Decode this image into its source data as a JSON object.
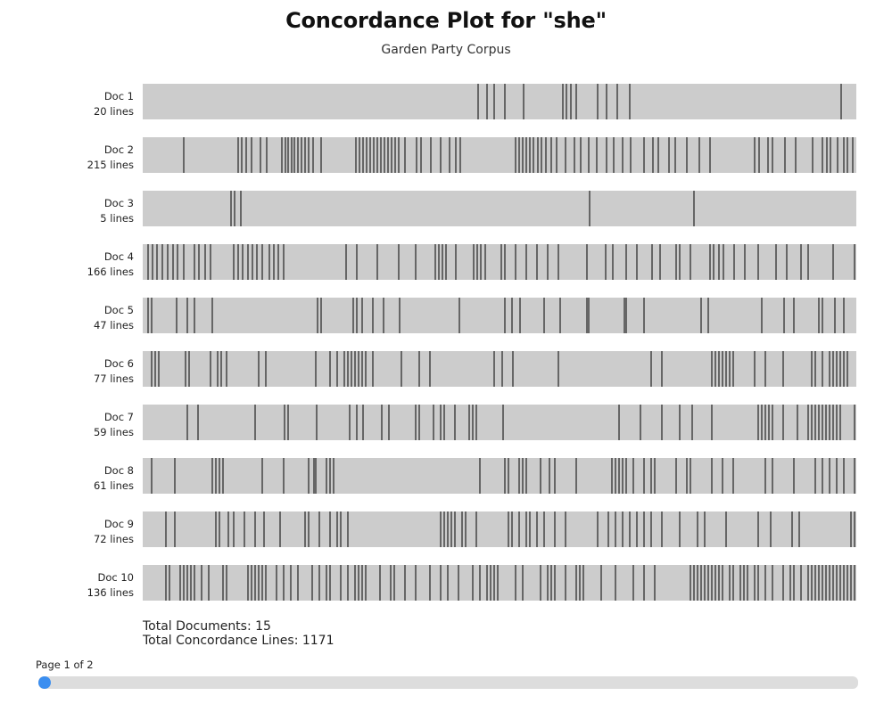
{
  "chart_data": {
    "type": "concordance",
    "title": "Concordance Plot for \"she\"",
    "subtitle": "Garden Party Corpus",
    "hit_color": "#666666",
    "track_color": "#cccccc",
    "documents": [
      {
        "label": "Doc 1",
        "lines_label": "20 lines",
        "lines": 20,
        "hits": [
          0.469,
          0.481,
          0.491,
          0.506,
          0.532,
          0.587,
          0.592,
          0.599,
          0.606,
          0.636,
          0.649,
          0.664,
          0.681,
          0.977
        ]
      },
      {
        "label": "Doc 2",
        "lines_label": "215 lines",
        "lines": 215,
        "hits": [
          0.056,
          0.132,
          0.138,
          0.144,
          0.151,
          0.164,
          0.172,
          0.194,
          0.199,
          0.203,
          0.207,
          0.211,
          0.216,
          0.221,
          0.226,
          0.231,
          0.238,
          0.249,
          0.298,
          0.303,
          0.308,
          0.313,
          0.318,
          0.323,
          0.328,
          0.333,
          0.338,
          0.343,
          0.348,
          0.353,
          0.358,
          0.366,
          0.383,
          0.389,
          0.402,
          0.416,
          0.429,
          0.438,
          0.444,
          0.521,
          0.526,
          0.531,
          0.536,
          0.541,
          0.546,
          0.552,
          0.557,
          0.564,
          0.571,
          0.579,
          0.591,
          0.604,
          0.612,
          0.624,
          0.635,
          0.649,
          0.659,
          0.671,
          0.683,
          0.701,
          0.714,
          0.721,
          0.736,
          0.745,
          0.761,
          0.779,
          0.794,
          0.856,
          0.863,
          0.875,
          0.881,
          0.899,
          0.914,
          0.937,
          0.951,
          0.957,
          0.962,
          0.972,
          0.981,
          0.986,
          0.994
        ]
      },
      {
        "label": "Doc 3",
        "lines_label": "5 lines",
        "lines": 5,
        "hits": [
          0.122,
          0.128,
          0.136,
          0.625,
          0.771
        ]
      },
      {
        "label": "Doc 4",
        "lines_label": "166 lines",
        "lines": 166,
        "hits": [
          0.006,
          0.012,
          0.019,
          0.026,
          0.034,
          0.041,
          0.048,
          0.056,
          0.071,
          0.078,
          0.086,
          0.094,
          0.126,
          0.133,
          0.139,
          0.146,
          0.152,
          0.159,
          0.166,
          0.176,
          0.182,
          0.189,
          0.196,
          0.284,
          0.299,
          0.328,
          0.357,
          0.381,
          0.409,
          0.414,
          0.419,
          0.424,
          0.438,
          0.462,
          0.467,
          0.472,
          0.479,
          0.501,
          0.506,
          0.521,
          0.536,
          0.551,
          0.566,
          0.581,
          0.621,
          0.648,
          0.658,
          0.676,
          0.691,
          0.712,
          0.724,
          0.746,
          0.751,
          0.766,
          0.794,
          0.799,
          0.806,
          0.813,
          0.828,
          0.843,
          0.861,
          0.886,
          0.901,
          0.921,
          0.931,
          0.966,
          0.996
        ]
      },
      {
        "label": "Doc 5",
        "lines_label": "47 lines",
        "lines": 47,
        "hits": [
          0.006,
          0.011,
          0.046,
          0.061,
          0.071,
          0.096,
          0.244,
          0.249,
          0.294,
          0.299,
          0.306,
          0.321,
          0.336,
          0.359,
          0.443,
          0.506,
          0.516,
          0.528,
          0.561,
          0.584,
          0.621,
          0.624,
          0.674,
          0.676,
          0.701,
          0.781,
          0.791,
          0.866,
          0.897,
          0.911,
          0.946,
          0.951,
          0.969,
          0.981
        ]
      },
      {
        "label": "Doc 6",
        "lines_label": "77 lines",
        "lines": 77,
        "hits": [
          0.011,
          0.016,
          0.021,
          0.059,
          0.064,
          0.094,
          0.104,
          0.109,
          0.116,
          0.161,
          0.171,
          0.241,
          0.261,
          0.271,
          0.281,
          0.286,
          0.291,
          0.296,
          0.301,
          0.306,
          0.311,
          0.321,
          0.361,
          0.386,
          0.401,
          0.491,
          0.502,
          0.518,
          0.581,
          0.711,
          0.726,
          0.796,
          0.801,
          0.806,
          0.811,
          0.816,
          0.821,
          0.826,
          0.856,
          0.871,
          0.896,
          0.936,
          0.941,
          0.951,
          0.961,
          0.966,
          0.971,
          0.976,
          0.981,
          0.986
        ]
      },
      {
        "label": "Doc 7",
        "lines_label": "59 lines",
        "lines": 59,
        "hits": [
          0.061,
          0.076,
          0.156,
          0.198,
          0.203,
          0.243,
          0.289,
          0.299,
          0.308,
          0.334,
          0.344,
          0.381,
          0.386,
          0.406,
          0.416,
          0.421,
          0.436,
          0.456,
          0.461,
          0.466,
          0.504,
          0.666,
          0.696,
          0.726,
          0.751,
          0.769,
          0.796,
          0.861,
          0.866,
          0.871,
          0.876,
          0.881,
          0.896,
          0.916,
          0.931,
          0.936,
          0.941,
          0.946,
          0.951,
          0.956,
          0.961,
          0.966,
          0.971,
          0.976,
          0.996
        ]
      },
      {
        "label": "Doc 8",
        "lines_label": "61 lines",
        "lines": 61,
        "hits": [
          0.011,
          0.044,
          0.096,
          0.101,
          0.106,
          0.111,
          0.166,
          0.196,
          0.231,
          0.239,
          0.241,
          0.256,
          0.261,
          0.266,
          0.471,
          0.506,
          0.511,
          0.526,
          0.531,
          0.536,
          0.556,
          0.569,
          0.576,
          0.606,
          0.656,
          0.661,
          0.666,
          0.671,
          0.676,
          0.686,
          0.701,
          0.711,
          0.716,
          0.746,
          0.761,
          0.766,
          0.796,
          0.811,
          0.826,
          0.871,
          0.881,
          0.911,
          0.941,
          0.951,
          0.961,
          0.971,
          0.981,
          0.996
        ]
      },
      {
        "label": "Doc 9",
        "lines_label": "72 lines",
        "lines": 72,
        "hits": [
          0.031,
          0.044,
          0.101,
          0.106,
          0.119,
          0.126,
          0.141,
          0.156,
          0.169,
          0.191,
          0.226,
          0.231,
          0.246,
          0.261,
          0.271,
          0.276,
          0.286,
          0.416,
          0.421,
          0.426,
          0.431,
          0.436,
          0.446,
          0.451,
          0.466,
          0.511,
          0.516,
          0.526,
          0.536,
          0.541,
          0.551,
          0.561,
          0.576,
          0.591,
          0.636,
          0.651,
          0.661,
          0.671,
          0.681,
          0.691,
          0.701,
          0.711,
          0.726,
          0.751,
          0.776,
          0.786,
          0.816,
          0.861,
          0.879,
          0.909,
          0.919,
          0.991,
          0.996
        ]
      },
      {
        "label": "Doc 10",
        "lines_label": "136 lines",
        "lines": 136,
        "hits": [
          0.031,
          0.036,
          0.051,
          0.056,
          0.061,
          0.066,
          0.071,
          0.081,
          0.091,
          0.111,
          0.116,
          0.146,
          0.151,
          0.156,
          0.161,
          0.166,
          0.171,
          0.186,
          0.196,
          0.206,
          0.216,
          0.236,
          0.246,
          0.256,
          0.261,
          0.276,
          0.286,
          0.296,
          0.301,
          0.306,
          0.311,
          0.331,
          0.346,
          0.351,
          0.366,
          0.381,
          0.401,
          0.416,
          0.426,
          0.441,
          0.461,
          0.471,
          0.481,
          0.486,
          0.491,
          0.496,
          0.521,
          0.531,
          0.556,
          0.566,
          0.571,
          0.576,
          0.591,
          0.606,
          0.611,
          0.616,
          0.641,
          0.661,
          0.686,
          0.701,
          0.716,
          0.766,
          0.771,
          0.776,
          0.781,
          0.786,
          0.791,
          0.796,
          0.801,
          0.806,
          0.811,
          0.821,
          0.826,
          0.836,
          0.841,
          0.846,
          0.856,
          0.861,
          0.871,
          0.881,
          0.896,
          0.906,
          0.911,
          0.921,
          0.931,
          0.936,
          0.941,
          0.946,
          0.951,
          0.956,
          0.961,
          0.966,
          0.971,
          0.976,
          0.981,
          0.986,
          0.991,
          0.996
        ]
      }
    ]
  },
  "summary": {
    "total_documents": "Total Documents: 15",
    "total_lines": "Total Concordance Lines: 1171"
  },
  "pagination": {
    "label": "Page 1 of 2",
    "current_page": 1,
    "total_pages": 2,
    "accent_color": "#3b8ef0"
  }
}
